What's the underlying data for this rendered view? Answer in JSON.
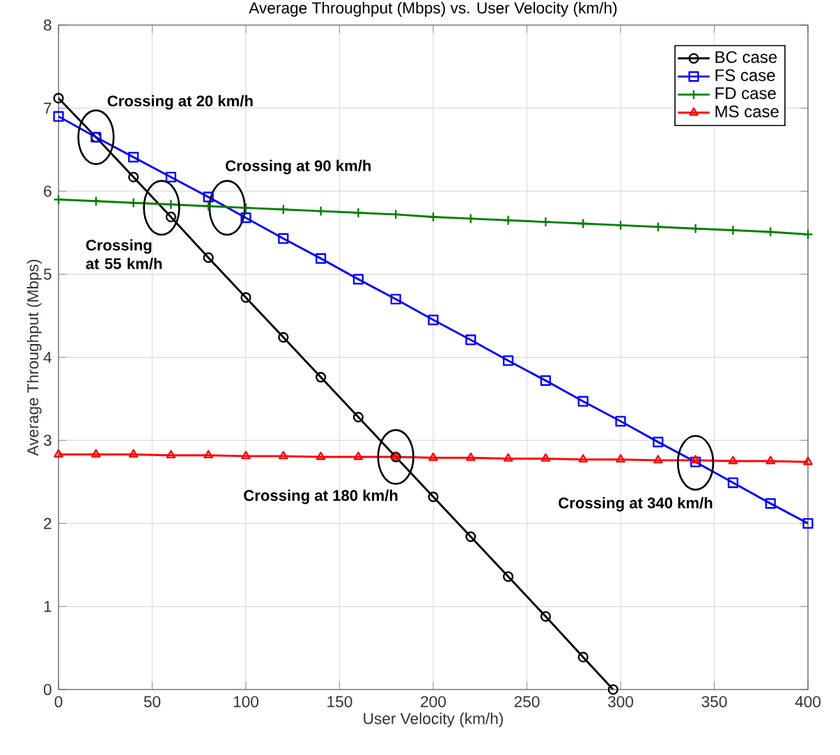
{
  "chart_data": {
    "type": "line",
    "title": "Average Throughput (Mbps) vs. User Velocity (km/h)",
    "xlabel": "User Velocity (km/h)",
    "ylabel": "Average Throughput (Mbps)",
    "x": [
      0,
      20,
      40,
      60,
      80,
      100,
      120,
      140,
      160,
      180,
      200,
      220,
      240,
      260,
      280,
      300,
      320,
      340,
      360,
      380,
      400
    ],
    "xlim": [
      0,
      400
    ],
    "ylim": [
      0,
      8
    ],
    "xticks": [
      0,
      50,
      100,
      150,
      200,
      250,
      300,
      350,
      400
    ],
    "yticks": [
      0,
      1,
      2,
      3,
      4,
      5,
      6,
      7,
      8
    ],
    "grid": true,
    "legend": "top right",
    "line_style": "solid",
    "series": [
      {
        "name": "BC case",
        "color": "#000000",
        "marker": "circle",
        "x": [
          0,
          20,
          40,
          60,
          80,
          100,
          120,
          140,
          160,
          180,
          200,
          220,
          240,
          260,
          280,
          296
        ],
        "values": [
          7.12,
          6.65,
          6.17,
          5.69,
          5.2,
          4.72,
          4.24,
          3.76,
          3.28,
          2.8,
          2.32,
          1.84,
          1.36,
          0.88,
          0.39,
          0
        ]
      },
      {
        "name": "FS case",
        "color": "#0000ff",
        "marker": "square",
        "values": [
          6.9,
          6.65,
          6.41,
          6.17,
          5.93,
          5.68,
          5.43,
          5.19,
          4.94,
          4.7,
          4.45,
          4.21,
          3.96,
          3.72,
          3.47,
          3.23,
          2.98,
          2.74,
          2.49,
          2.24,
          2.0
        ]
      },
      {
        "name": "FD case",
        "color": "#008000",
        "marker": "cross",
        "values": [
          5.9,
          5.88,
          5.86,
          5.84,
          5.82,
          5.8,
          5.78,
          5.76,
          5.74,
          5.72,
          5.69,
          5.67,
          5.65,
          5.63,
          5.61,
          5.59,
          5.57,
          5.55,
          5.53,
          5.51,
          5.48
        ]
      },
      {
        "name": "MS case",
        "color": "#ff0000",
        "marker": "triangle",
        "values": [
          2.83,
          2.83,
          2.83,
          2.82,
          2.82,
          2.81,
          2.81,
          2.8,
          2.8,
          2.8,
          2.79,
          2.79,
          2.78,
          2.78,
          2.77,
          2.77,
          2.76,
          2.76,
          2.75,
          2.75,
          2.74
        ]
      }
    ],
    "annotations": [
      {
        "text": "Crossing at 20 km/h",
        "x": 20,
        "y": 6.65
      },
      {
        "text": "Crossing at 55 km/h",
        "x": 55,
        "y": 5.8
      },
      {
        "text": "Crossing at 90 km/h",
        "x": 90,
        "y": 5.8
      },
      {
        "text": "Crossing at 180 km/h",
        "x": 180,
        "y": 2.8
      },
      {
        "text": "Crossing at 340 km/h",
        "x": 340,
        "y": 2.73
      }
    ]
  }
}
